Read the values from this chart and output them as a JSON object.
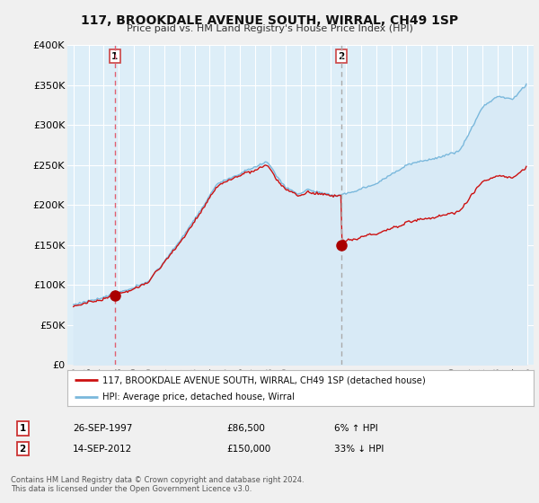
{
  "title": "117, BROOKDALE AVENUE SOUTH, WIRRAL, CH49 1SP",
  "subtitle": "Price paid vs. HM Land Registry's House Price Index (HPI)",
  "legend_line1": "117, BROOKDALE AVENUE SOUTH, WIRRAL, CH49 1SP (detached house)",
  "legend_line2": "HPI: Average price, detached house, Wirral",
  "footer1": "Contains HM Land Registry data © Crown copyright and database right 2024.",
  "footer2": "This data is licensed under the Open Government Licence v3.0.",
  "sale1_date": "26-SEP-1997",
  "sale1_price": "£86,500",
  "sale1_hpi": "6% ↑ HPI",
  "sale2_date": "14-SEP-2012",
  "sale2_price": "£150,000",
  "sale2_hpi": "33% ↓ HPI",
  "sale1_x": 1997.74,
  "sale1_y": 86500,
  "sale2_x": 2012.71,
  "sale2_y": 150000,
  "ylim": [
    0,
    400000
  ],
  "xlim_left": 1994.6,
  "xlim_right": 2025.4,
  "hpi_color": "#7ab8dc",
  "hpi_fill_color": "#d8eaf6",
  "price_color": "#cc1111",
  "dot_color": "#aa0000",
  "vline1_color": "#e06070",
  "vline2_color": "#aaaaaa",
  "background_color": "#f0f0f0",
  "plot_bg_color": "#ddeef8",
  "grid_color": "#ffffff",
  "title_color": "#111111",
  "subtitle_color": "#333333"
}
